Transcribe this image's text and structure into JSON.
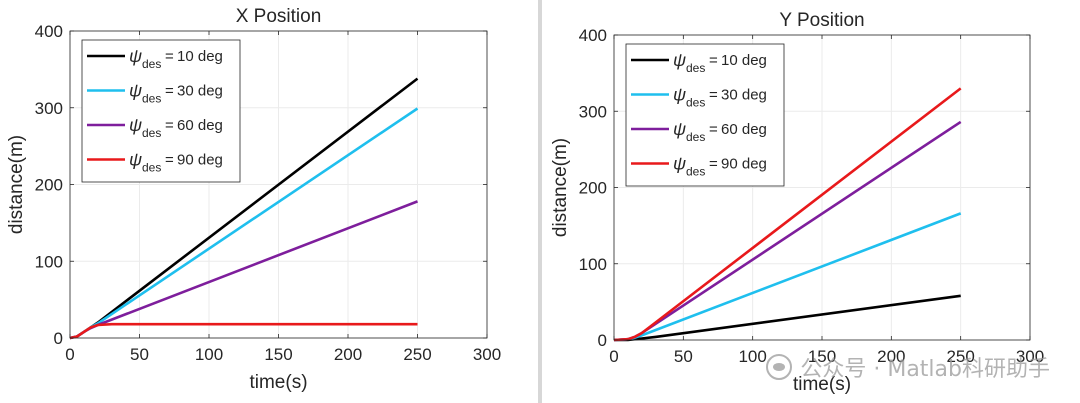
{
  "chart_data": [
    {
      "type": "line",
      "title": "X Position",
      "xlabel": "time(s)",
      "ylabel": "distance(m)",
      "xlim": [
        0,
        300
      ],
      "ylim": [
        0,
        400
      ],
      "xticks": [
        "0",
        "50",
        "100",
        "150",
        "200",
        "250",
        "300"
      ],
      "yticks": [
        "0",
        "100",
        "200",
        "300",
        "400"
      ],
      "grid": true,
      "legend_position": "top-left",
      "series": [
        {
          "name": "10 deg",
          "color": "#000000",
          "points": [
            [
              0,
              0
            ],
            [
              5,
              2
            ],
            [
              10,
              8
            ],
            [
              15,
              14
            ],
            [
              20,
              20
            ],
            [
              250,
              338
            ]
          ]
        },
        {
          "name": "30 deg",
          "color": "#1fbfee",
          "points": [
            [
              0,
              0
            ],
            [
              5,
              2
            ],
            [
              10,
              8
            ],
            [
              15,
              14
            ],
            [
              20,
              19
            ],
            [
              250,
              299
            ]
          ]
        },
        {
          "name": "60 deg",
          "color": "#7e1e9c",
          "points": [
            [
              0,
              0
            ],
            [
              5,
              2
            ],
            [
              10,
              8
            ],
            [
              15,
              13
            ],
            [
              20,
              17
            ],
            [
              250,
              178
            ]
          ]
        },
        {
          "name": "90 deg",
          "color": "#e8191b",
          "points": [
            [
              0,
              0
            ],
            [
              5,
              2
            ],
            [
              10,
              8
            ],
            [
              15,
              14
            ],
            [
              20,
              17
            ],
            [
              30,
              18
            ],
            [
              250,
              18
            ]
          ]
        }
      ]
    },
    {
      "type": "line",
      "title": "Y Position",
      "xlabel": "time(s)",
      "ylabel": "distance(m)",
      "xlim": [
        0,
        300
      ],
      "ylim": [
        0,
        400
      ],
      "xticks": [
        "0",
        "50",
        "100",
        "150",
        "200",
        "250",
        "300"
      ],
      "yticks": [
        "0",
        "100",
        "200",
        "300",
        "400"
      ],
      "grid": true,
      "legend_position": "top-left",
      "series": [
        {
          "name": "10 deg",
          "color": "#000000",
          "points": [
            [
              0,
              0
            ],
            [
              10,
              0
            ],
            [
              20,
              2
            ],
            [
              30,
              4
            ],
            [
              250,
              58
            ]
          ]
        },
        {
          "name": "30 deg",
          "color": "#1fbfee",
          "points": [
            [
              0,
              0
            ],
            [
              10,
              1
            ],
            [
              15,
              3
            ],
            [
              20,
              6
            ],
            [
              250,
              166
            ]
          ]
        },
        {
          "name": "60 deg",
          "color": "#7e1e9c",
          "points": [
            [
              0,
              0
            ],
            [
              10,
              1
            ],
            [
              15,
              4
            ],
            [
              20,
              9
            ],
            [
              250,
              286
            ]
          ]
        },
        {
          "name": "90 deg",
          "color": "#e8191b",
          "points": [
            [
              0,
              0
            ],
            [
              10,
              1
            ],
            [
              15,
              4
            ],
            [
              20,
              9
            ],
            [
              250,
              330
            ]
          ]
        }
      ]
    }
  ],
  "legend_symbol": "ψ",
  "legend_subscript": "des",
  "legend_equals": "=",
  "watermark": "公众号 · Matlab科研助手"
}
